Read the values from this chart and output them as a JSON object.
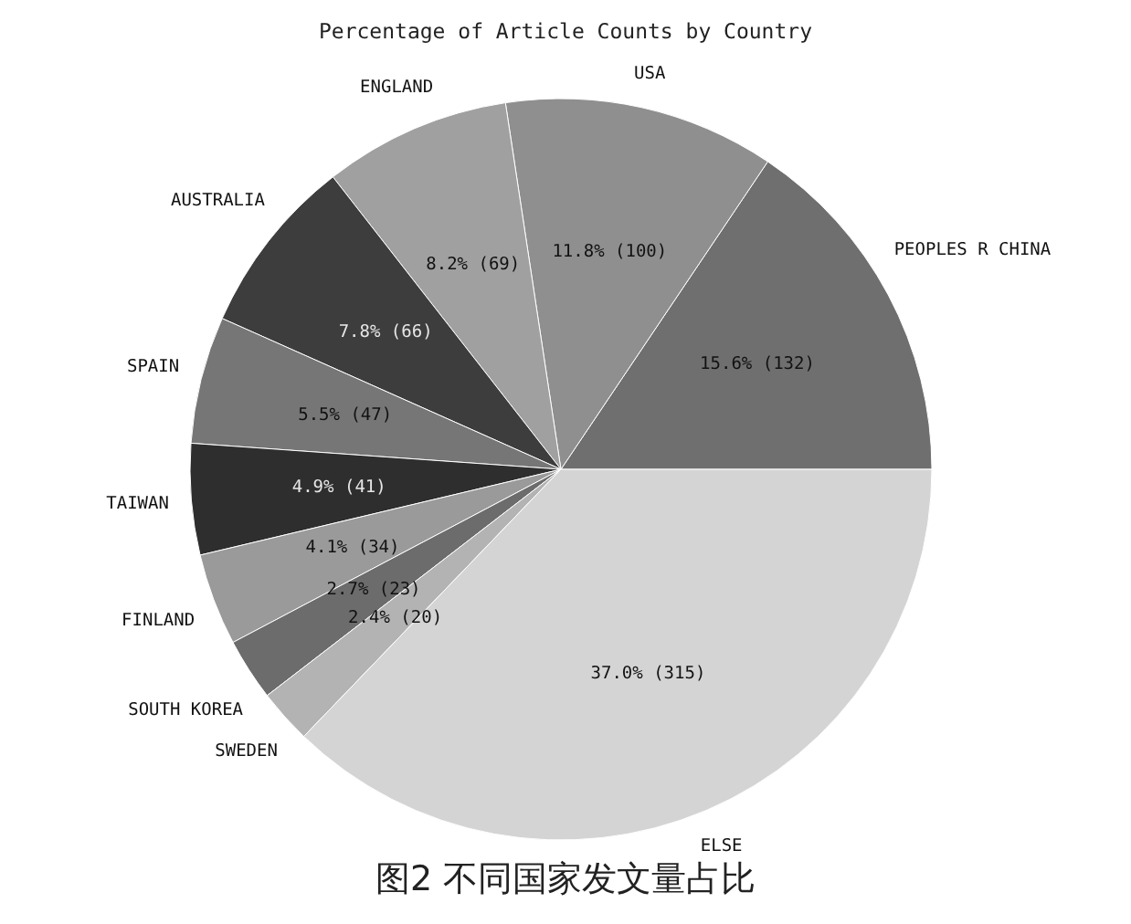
{
  "chart_data": {
    "type": "pie",
    "title": "Percentage of Article Counts by Country",
    "categories": [
      "PEOPLES R CHINA",
      "USA",
      "ENGLAND",
      "AUSTRALIA",
      "SPAIN",
      "TAIWAN",
      "FINLAND",
      "SOUTH KOREA",
      "SWEDEN",
      "ELSE"
    ],
    "values": [
      132,
      100,
      69,
      66,
      47,
      41,
      34,
      23,
      20,
      315
    ],
    "value_labels": [
      "15.6% (132)",
      "11.8% (100)",
      "8.2% (69)",
      "7.8% (66)",
      "5.5% (47)",
      "4.9% (41)",
      "4.1% (34)",
      "2.7% (23)",
      "2.4% (20)",
      "37.0% (315)"
    ],
    "colors": [
      "#6f6f6f",
      "#8f8f8f",
      "#a0a0a0",
      "#3d3d3d",
      "#767676",
      "#2e2e2e",
      "#9a9a9a",
      "#6c6c6c",
      "#b3b3b3",
      "#d4d4d4"
    ],
    "annotations": [
      "图2 不同国家发文量占比"
    ]
  }
}
